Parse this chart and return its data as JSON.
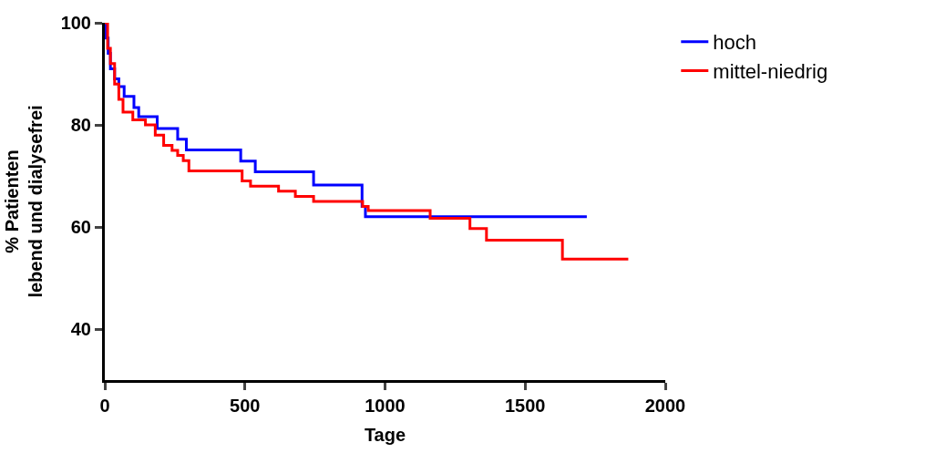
{
  "chart_data": {
    "type": "step",
    "xlabel": "Tage",
    "ylabel": "% Patienten\nlebend und dialysefrei",
    "xlim": [
      0,
      2000
    ],
    "xticks": [
      0,
      500,
      1000,
      1500,
      2000
    ],
    "ylim": [
      30,
      100
    ],
    "yticks": [
      40,
      60,
      80,
      100
    ],
    "legend": "top right",
    "series": [
      {
        "name": "hoch",
        "color": "#0000ff",
        "x": [
          0,
          5,
          12,
          20,
          35,
          50,
          69,
          104,
          121,
          187,
          260,
          291,
          485,
          537,
          745,
          918,
          930,
          1720
        ],
        "values": [
          100,
          97,
          94,
          91,
          89,
          87.5,
          85.6,
          83.4,
          81.6,
          79.3,
          77.2,
          75.1,
          72.9,
          70.8,
          68.2,
          64,
          62,
          62
        ]
      },
      {
        "name": "mittel-niedrig",
        "color": "#ff0000",
        "x": [
          0,
          10,
          20,
          35,
          50,
          65,
          100,
          145,
          180,
          210,
          240,
          260,
          280,
          300,
          490,
          520,
          620,
          680,
          745,
          920,
          940,
          1161,
          1303,
          1362,
          1633,
          1868
        ],
        "values": [
          100,
          95,
          92,
          88,
          85,
          82.5,
          81,
          80,
          78,
          76,
          75,
          74,
          73,
          71,
          69,
          68,
          67,
          66,
          65,
          64,
          63.2,
          61.7,
          59.7,
          57.4,
          53.7,
          53.7
        ]
      }
    ]
  }
}
